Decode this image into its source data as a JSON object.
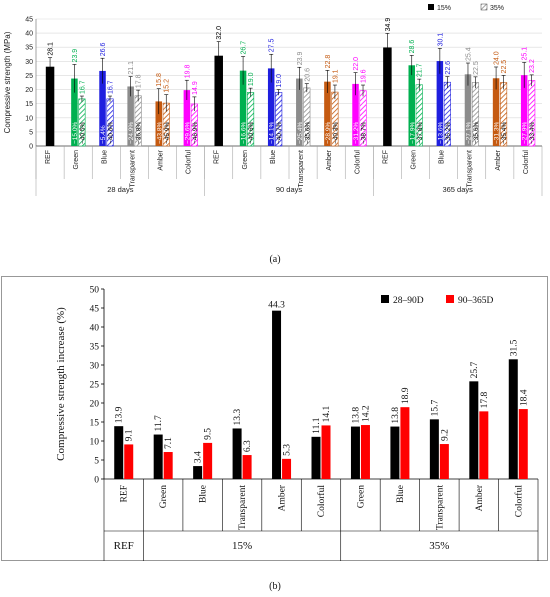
{
  "panel_a_label": "(a)",
  "panel_b_label": "(b)",
  "colors": {
    "REF": "#000000",
    "Green": "#00b050",
    "Blue": "#1f1fdf",
    "Transparent": "#8c8c8c",
    "Amber": "#c55a11",
    "Colorful": "#ff00ff",
    "b_series1": "#000000",
    "b_series2": "#ff0000"
  },
  "chart_data": [
    {
      "type": "bar",
      "ylabel": "Compressive strength (MPa)",
      "ylim": [
        0,
        45
      ],
      "yticks": [
        0,
        5,
        10,
        15,
        20,
        25,
        30,
        35,
        40,
        45
      ],
      "grid": true,
      "legend_position": "top-right",
      "legend": [
        "15%",
        "35%"
      ],
      "groups": [
        {
          "label": "28 days",
          "categories": [
            "REF",
            "Green",
            "Blue",
            "Transparent",
            "Amber",
            "Colorful"
          ],
          "values_15": [
            28.1,
            23.9,
            26.6,
            21.1,
            15.8,
            19.8
          ],
          "values_35": [
            null,
            16.7,
            16.7,
            17.8,
            15.2,
            14.9
          ],
          "errors_15": [
            3.2,
            5.0,
            4.5,
            3.5,
            4.5,
            3.5
          ],
          "errors_35": [
            null,
            1.0,
            1.0,
            2.0,
            3.0,
            2.5
          ],
          "pct_15": [
            "",
            "−15.0%",
            "−5.4%",
            "−24.9%",
            "−43.8%",
            "−29.6%"
          ],
          "pct_35": [
            "",
            "−40.5%",
            "−40.6%",
            "−36.8%",
            "−45.9%",
            "−46.9%"
          ]
        },
        {
          "label": "90 days",
          "categories": [
            "REF",
            "Green",
            "Blue",
            "Transparent",
            "Amber",
            "Colorful"
          ],
          "values_15": [
            32.0,
            26.7,
            27.5,
            23.9,
            22.8,
            22.0
          ],
          "values_35": [
            null,
            19.0,
            19.0,
            20.6,
            19.1,
            19.6
          ],
          "errors_15": [
            5.0,
            5.0,
            5.0,
            4.0,
            4.0,
            4.0
          ],
          "errors_35": [
            null,
            1.5,
            1.0,
            1.5,
            2.5,
            2.0
          ],
          "pct_15": [
            "",
            "−16.6%",
            "−14.1%",
            "−25.4%",
            "−28.9%",
            "−31.2%"
          ],
          "pct_35": [
            "",
            "−40.6%",
            "−40.7%",
            "−35.6%",
            "−40.3%",
            "−38.7%"
          ]
        },
        {
          "label": "365 days",
          "categories": [
            "REF",
            "Green",
            "Blue",
            "Transparent",
            "Amber",
            "Colorful"
          ],
          "values_15": [
            34.9,
            28.6,
            30.1,
            25.4,
            24.0,
            25.1
          ],
          "values_35": [
            null,
            21.7,
            22.6,
            22.5,
            22.5,
            23.2
          ],
          "errors_15": [
            5.0,
            3.5,
            4.5,
            4.0,
            4.0,
            4.5
          ],
          "errors_35": [
            null,
            2.0,
            2.0,
            2.0,
            2.5,
            2.0
          ],
          "pct_15": [
            "",
            "−17.9%",
            "−13.6%",
            "−27.1%",
            "−31.3%",
            "−27.9%"
          ],
          "pct_35": [
            "",
            "−37.8%",
            "−35.2%",
            "−35.6%",
            "−35.4%",
            "−33.4%"
          ]
        }
      ]
    },
    {
      "type": "bar",
      "ylabel": "Compressive strength increase (%)",
      "ylim": [
        0,
        50
      ],
      "yticks": [
        0,
        5,
        10,
        15,
        20,
        25,
        30,
        35,
        40,
        45,
        50
      ],
      "grid": false,
      "legend_position": "top-right",
      "series_names": [
        "28–90D",
        "90–365D"
      ],
      "categories": [
        "REF",
        "Green",
        "Blue",
        "Transparent",
        "Amber",
        "Colorful",
        "Green",
        "Blue",
        "Transparent",
        "Amber",
        "Colorful"
      ],
      "series1": [
        13.9,
        11.7,
        3.4,
        13.3,
        44.3,
        11.1,
        13.8,
        13.8,
        15.7,
        25.7,
        31.5
      ],
      "series2": [
        9.1,
        7.1,
        9.5,
        6.3,
        5.3,
        14.1,
        14.2,
        18.9,
        9.2,
        17.8,
        18.4
      ],
      "labels1": [
        "13.9",
        "11.7",
        "3.4",
        "13.3",
        "44.3",
        "11.1",
        "13.8",
        "13.8",
        "15.7",
        "25.7",
        "31.5"
      ],
      "labels2": [
        "9.1",
        "7.1",
        "9.5",
        "6.3",
        "5.3",
        "14.1",
        "14.2",
        "18.9",
        "9.2",
        "17.8",
        "18.4"
      ],
      "group_labels": [
        "REF",
        "15%",
        "35%"
      ]
    }
  ]
}
